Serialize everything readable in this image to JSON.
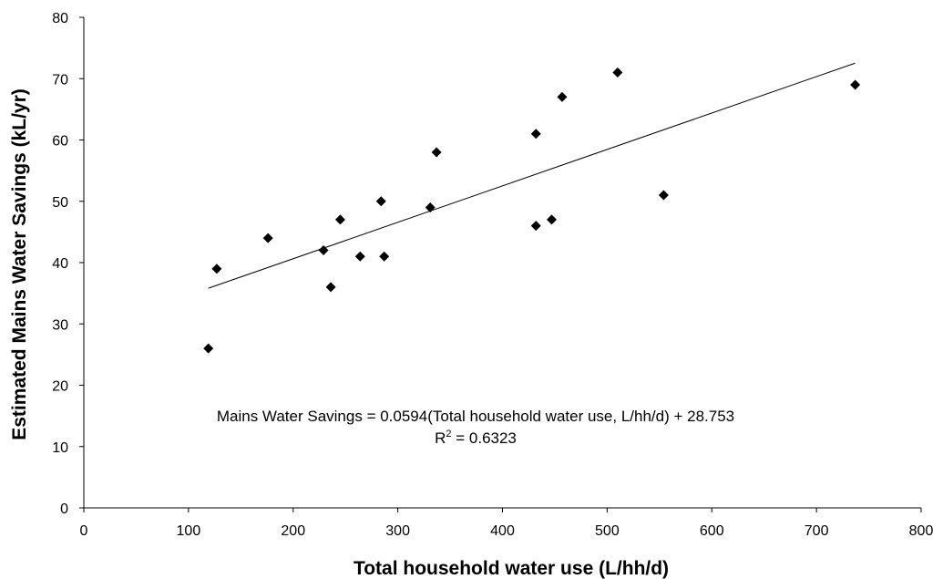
{
  "chart_data": {
    "type": "scatter",
    "xlabel": "Total household water use (L/hh/d)",
    "ylabel": "Estimated Mains Water Savings (kL/yr)",
    "xlim": [
      0,
      800
    ],
    "ylim": [
      0,
      80
    ],
    "x_ticks": [
      0,
      100,
      200,
      300,
      400,
      500,
      600,
      700,
      800
    ],
    "y_ticks": [
      0,
      10,
      20,
      30,
      40,
      50,
      60,
      70,
      80
    ],
    "x_tick_labels": [
      "0",
      "100",
      "200",
      "300",
      "400",
      "500",
      "600",
      "700",
      "800"
    ],
    "y_tick_labels": [
      "0",
      "10",
      "20",
      "30",
      "40",
      "50",
      "60",
      "70",
      "80"
    ],
    "grid": false,
    "legend": "none",
    "marker": "diamond",
    "marker_color": "#000000",
    "points": [
      {
        "x": 119,
        "y": 26
      },
      {
        "x": 127,
        "y": 39
      },
      {
        "x": 176,
        "y": 44
      },
      {
        "x": 229,
        "y": 42
      },
      {
        "x": 236,
        "y": 36
      },
      {
        "x": 245,
        "y": 47
      },
      {
        "x": 264,
        "y": 41
      },
      {
        "x": 284,
        "y": 50
      },
      {
        "x": 287,
        "y": 41
      },
      {
        "x": 331,
        "y": 49
      },
      {
        "x": 337,
        "y": 58
      },
      {
        "x": 432,
        "y": 61
      },
      {
        "x": 432,
        "y": 46
      },
      {
        "x": 447,
        "y": 47
      },
      {
        "x": 457,
        "y": 67
      },
      {
        "x": 510,
        "y": 71
      },
      {
        "x": 554,
        "y": 51
      },
      {
        "x": 737,
        "y": 69
      }
    ],
    "trendline": {
      "slope": 0.0594,
      "intercept": 28.753,
      "x_range": [
        119,
        737
      ],
      "color": "#000000"
    },
    "annotations": {
      "equation": "Mains Water Savings = 0.0594(Total household water use, L/hh/d) + 28.753",
      "r2_prefix": "R",
      "r2_sup": "2",
      "r2_rest": " = 0.6323"
    }
  }
}
